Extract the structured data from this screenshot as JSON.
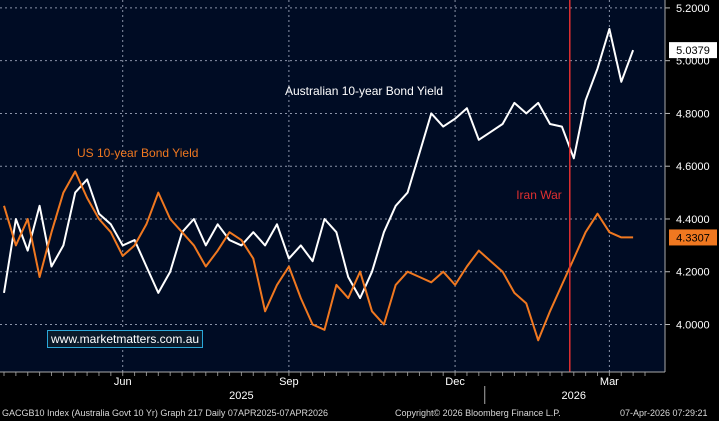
{
  "chart_data": {
    "type": "line",
    "title": "",
    "source_line": "GACGB10 Index (Australia Govt 10 Yr) Graph 217 Daily 07APR2025-07APR2026",
    "copyright": "Copyright© 2026 Bloomberg Finance L.P.",
    "timestamp": "07-Apr-2026 07:29:21",
    "watermark": "www.marketmatters.com.au",
    "x_ticks": [
      "Jun",
      "Sep",
      "Dec",
      "Mar"
    ],
    "year_labels": [
      "2025",
      "2026"
    ],
    "y_ticks": [
      "4.0000",
      "4.2000",
      "4.4000",
      "4.6000",
      "4.8000",
      "5.0000",
      "5.2000"
    ],
    "ylim": [
      3.82,
      5.23
    ],
    "xlim": [
      0,
      54
    ],
    "grid": true,
    "background": "#000c24",
    "annotations": [
      {
        "text": "Iran War",
        "x": 48,
        "color": "#e03030"
      }
    ],
    "series": [
      {
        "name": "Australian 10-year Bond Yield",
        "color": "#ffffff",
        "last_label": "5.0379",
        "x": [
          0,
          1,
          2,
          3,
          4,
          5,
          6,
          7,
          8,
          9,
          10,
          11,
          12,
          13,
          14,
          15,
          16,
          17,
          18,
          19,
          20,
          21,
          22,
          23,
          24,
          25,
          26,
          27,
          28,
          29,
          30,
          31,
          32,
          33,
          34,
          35,
          36,
          37,
          38,
          39,
          40,
          41,
          42,
          43,
          44,
          45,
          46,
          47,
          48,
          49,
          50,
          51,
          52,
          53
        ],
        "values": [
          4.12,
          4.4,
          4.28,
          4.45,
          4.22,
          4.3,
          4.5,
          4.55,
          4.42,
          4.38,
          4.3,
          4.32,
          4.22,
          4.12,
          4.2,
          4.35,
          4.4,
          4.3,
          4.38,
          4.32,
          4.3,
          4.35,
          4.3,
          4.38,
          4.25,
          4.3,
          4.24,
          4.4,
          4.35,
          4.18,
          4.1,
          4.2,
          4.35,
          4.45,
          4.5,
          4.65,
          4.8,
          4.75,
          4.78,
          4.82,
          4.7,
          4.73,
          4.76,
          4.84,
          4.8,
          4.84,
          4.76,
          4.75,
          4.63,
          4.85,
          4.97,
          5.12,
          4.92,
          5.04
        ]
      },
      {
        "name": "US 10-year Bond Yield",
        "color": "#f07820",
        "last_label": "4.3307",
        "x": [
          0,
          1,
          2,
          3,
          4,
          5,
          6,
          7,
          8,
          9,
          10,
          11,
          12,
          13,
          14,
          15,
          16,
          17,
          18,
          19,
          20,
          21,
          22,
          23,
          24,
          25,
          26,
          27,
          28,
          29,
          30,
          31,
          32,
          33,
          34,
          35,
          36,
          37,
          38,
          39,
          40,
          41,
          42,
          43,
          44,
          45,
          46,
          47,
          48,
          49,
          50,
          51,
          52,
          53
        ],
        "values": [
          4.45,
          4.3,
          4.4,
          4.18,
          4.35,
          4.5,
          4.58,
          4.48,
          4.4,
          4.35,
          4.26,
          4.3,
          4.38,
          4.5,
          4.4,
          4.35,
          4.3,
          4.22,
          4.28,
          4.35,
          4.32,
          4.25,
          4.05,
          4.15,
          4.22,
          4.1,
          4.0,
          3.98,
          4.15,
          4.1,
          4.2,
          4.05,
          4.0,
          4.15,
          4.2,
          4.18,
          4.16,
          4.2,
          4.15,
          4.22,
          4.28,
          4.24,
          4.2,
          4.12,
          4.08,
          3.94,
          4.05,
          4.15,
          4.25,
          4.35,
          4.42,
          4.35,
          4.33,
          4.33
        ]
      }
    ],
    "series_labels": [
      {
        "text": "Australian 10-year Bond Yield",
        "color": "#ffffff"
      },
      {
        "text": "US 10-year Bond Yield",
        "color": "#f07820"
      }
    ]
  }
}
